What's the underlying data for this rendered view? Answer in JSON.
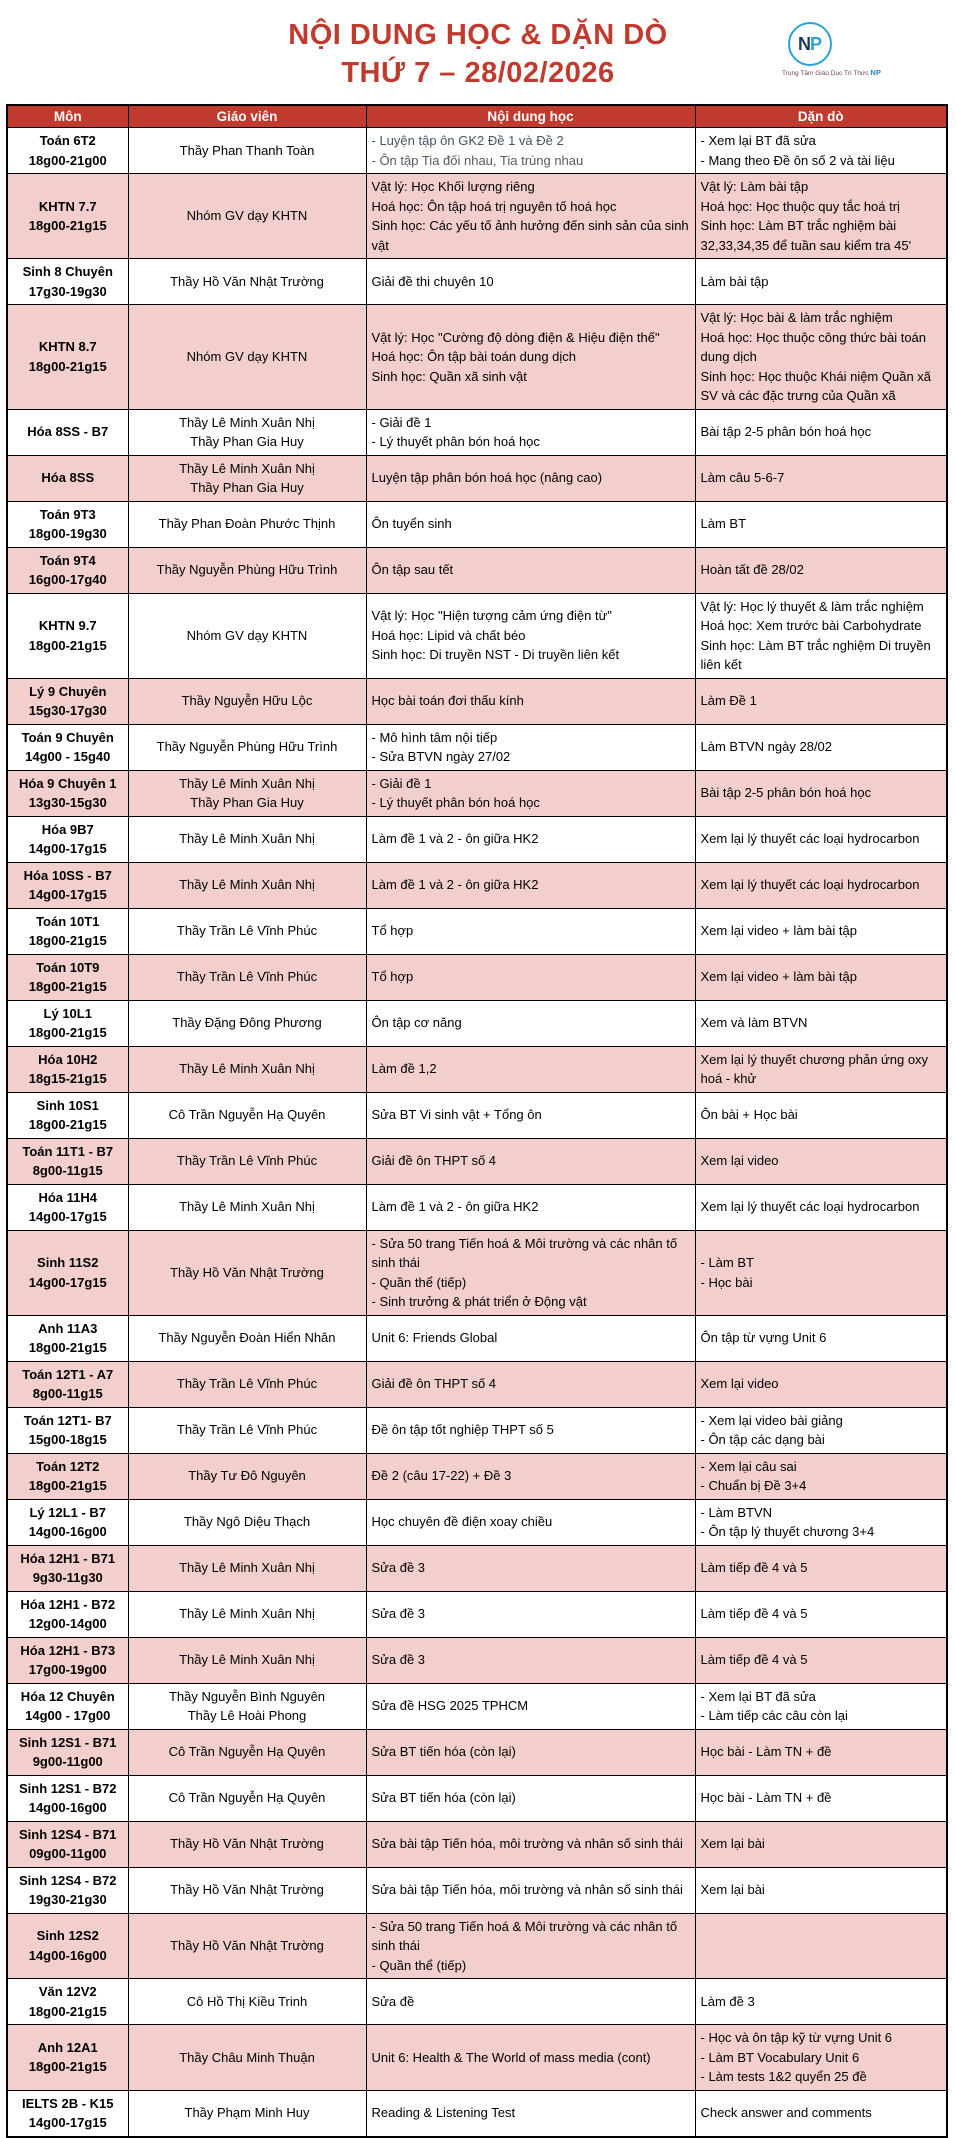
{
  "header": {
    "title_line1": "NỘI DUNG HỌC & DẶN DÒ",
    "title_line2": "THỨ 7 – 28/02/2026",
    "logo": {
      "monogram_n": "N",
      "monogram_p": "P",
      "caption": "Trung Tâm Giáo Dục Trí Thức",
      "caption_suffix": "NP"
    }
  },
  "theme": {
    "accent_red": "#c13a2e",
    "row_pink": "#f2cfcc",
    "header_text": "#ffffff",
    "logo_blue": "#29a3d4",
    "logo_navy": "#1b3a5e",
    "muted_text": "#595959"
  },
  "table": {
    "columns": [
      "Môn",
      "Giáo viên",
      "Nội dung học",
      "Dặn dò"
    ],
    "rows": [
      {
        "subject": "Toán 6T2",
        "time": "18g00-21g00",
        "teachers": [
          "Thầy Phan Thanh Toàn"
        ],
        "content": [
          "- Luyện tập ôn GK2 Đề 1 và Đề 2",
          "- Ôn tập Tia đối nhau, Tia trùng nhau"
        ],
        "content_colors": [
          "#44546a",
          "#595959"
        ],
        "homework": [
          "- Xem lại BT đã sửa",
          "- Mang theo Đề ôn số 2 và tài liệu"
        ]
      },
      {
        "subject": "KHTN 7.7",
        "time": "18g00-21g15",
        "teachers": [
          "Nhóm GV dạy KHTN"
        ],
        "content": [
          "Vật lý: Học Khối lượng riêng",
          "Hoá học: Ôn tập hoá trị nguyên tố hoá học",
          "Sinh học: Các yếu tố ảnh hưởng đến sinh sản của sinh vật"
        ],
        "homework": [
          "Vật lý: Làm bài tập",
          "Hoá học: Học thuộc quy tắc hoá trị",
          "Sinh học: Làm BT trắc nghiệm bài 32,33,34,35 để tuần sau kiểm tra 45'"
        ]
      },
      {
        "subject": "Sinh 8 Chuyên",
        "time": "17g30-19g30",
        "teachers": [
          "Thầy Hồ Văn Nhật Trường"
        ],
        "content": [
          "Giải đề thi chuyên 10"
        ],
        "homework": [
          "Làm bài tập"
        ]
      },
      {
        "subject": "KHTN 8.7",
        "time": "18g00-21g15",
        "teachers": [
          "Nhóm GV dạy KHTN"
        ],
        "content": [
          "Vật lý: Học \"Cường độ dòng điện & Hiệu điện thế\"",
          "Hoá học: Ôn tập bài toán dung dịch",
          "Sinh học: Quần xã sinh vật"
        ],
        "homework": [
          "Vật lý: Học bài & làm trắc nghiệm",
          "Hoá học: Học thuộc công thức bài toán dung dịch",
          "Sinh học: Học thuộc Khái niệm Quần xã SV và các đặc trưng của Quần xã"
        ]
      },
      {
        "subject": "Hóa 8SS - B7",
        "time": "",
        "teachers": [
          "Thầy Lê Minh Xuân Nhị",
          "Thầy Phan Gia Huy"
        ],
        "content": [
          "- Giải đề 1",
          "- Lý thuyết phân bón hoá học"
        ],
        "homework": [
          "Bài tập 2-5 phân bón hoá học"
        ]
      },
      {
        "subject": "Hóa 8SS",
        "time": "",
        "teachers": [
          "Thầy Lê Minh Xuân Nhị",
          "Thầy Phan Gia Huy"
        ],
        "content": [
          "Luyện tập phân bón hoá học (nâng cao)"
        ],
        "homework": [
          "Làm câu 5-6-7"
        ]
      },
      {
        "subject": "Toán 9T3",
        "time": "18g00-19g30",
        "teachers": [
          "Thầy Phan Đoàn Phước Thịnh"
        ],
        "content": [
          "Ôn tuyển sinh"
        ],
        "homework": [
          "Làm BT"
        ]
      },
      {
        "subject": "Toán 9T4",
        "time": "16g00-17g40",
        "teachers": [
          "Thầy Nguyễn Phùng Hữu Trình"
        ],
        "content": [
          "Ôn tập sau tết"
        ],
        "homework": [
          "Hoàn tất đề 28/02"
        ]
      },
      {
        "subject": "KHTN 9.7",
        "time": "18g00-21g15",
        "teachers": [
          "Nhóm GV dạy KHTN"
        ],
        "content": [
          "Vật lý: Học \"Hiện tượng cảm ứng điện từ\"",
          "Hoá học: Lipid và chất béo",
          "Sinh học: Di truyền NST - Di truyền liên kết"
        ],
        "homework": [
          "Vật lý: Học lý thuyết & làm trắc nghiệm",
          "Hoá học: Xem trước bài Carbohydrate",
          "Sinh học: Làm BT trắc nghiệm Di truyền liên kết"
        ]
      },
      {
        "subject": "Lý 9 Chuyên",
        "time": "15g30-17g30",
        "teachers": [
          "Thầy Nguyễn Hữu Lộc"
        ],
        "content": [
          "Học bài toán đơi thấu kính"
        ],
        "homework": [
          "Làm Đề 1"
        ]
      },
      {
        "subject": "Toán 9 Chuyên",
        "time": "14g00 - 15g40",
        "teachers": [
          "Thầy Nguyễn Phùng Hữu Trình"
        ],
        "content": [
          "- Mô hình tâm nội tiếp",
          "- Sửa BTVN ngày 27/02"
        ],
        "homework": [
          "Làm BTVN ngày 28/02"
        ]
      },
      {
        "subject": "Hóa 9 Chuyên 1",
        "time": "13g30-15g30",
        "teachers": [
          "Thầy Lê Minh Xuân Nhị",
          "Thầy Phan Gia Huy"
        ],
        "content": [
          "- Giải đề 1",
          "- Lý thuyết phân bón hoá học"
        ],
        "homework": [
          "Bài tập 2-5 phân bón hoá học"
        ]
      },
      {
        "subject": "Hóa 9B7",
        "time": "14g00-17g15",
        "teachers": [
          "Thầy Lê Minh Xuân Nhị"
        ],
        "content": [
          "Làm đề 1 và 2 - ôn giữa HK2"
        ],
        "homework": [
          "Xem lại lý thuyết các loại hydrocarbon"
        ]
      },
      {
        "subject": "Hóa 10SS - B7",
        "time": "14g00-17g15",
        "teachers": [
          "Thầy Lê Minh Xuân Nhị"
        ],
        "content": [
          "Làm đề 1 và 2 - ôn giữa HK2"
        ],
        "homework": [
          "Xem lại lý thuyết các loại hydrocarbon"
        ]
      },
      {
        "subject": "Toán 10T1",
        "time": "18g00-21g15",
        "teachers": [
          "Thầy Trần Lê Vĩnh Phúc"
        ],
        "content": [
          "Tổ hợp"
        ],
        "homework": [
          "Xem lại video + làm bài tập"
        ]
      },
      {
        "subject": "Toán 10T9",
        "time": "18g00-21g15",
        "teachers": [
          "Thầy Trần Lê Vĩnh Phúc"
        ],
        "content": [
          "Tổ hợp"
        ],
        "homework": [
          "Xem lại video + làm bài tập"
        ]
      },
      {
        "subject": "Lý 10L1",
        "time": "18g00-21g15",
        "teachers": [
          "Thầy Đặng Đông Phương"
        ],
        "content": [
          "Ôn tập cơ năng"
        ],
        "homework": [
          "Xem và làm BTVN"
        ]
      },
      {
        "subject": "Hóa 10H2",
        "time": "18g15-21g15",
        "teachers": [
          "Thầy Lê Minh Xuân Nhị"
        ],
        "content": [
          "Làm đề 1,2"
        ],
        "homework": [
          "Xem lại lý thuyết chương phản ứng oxy hoá - khử"
        ]
      },
      {
        "subject": "Sinh 10S1",
        "time": "18g00-21g15",
        "teachers": [
          "Cô Trần Nguyễn Hạ Quyên"
        ],
        "content": [
          "Sửa BT Vi sinh vật + Tổng ôn"
        ],
        "homework": [
          "Ôn bài + Học bài"
        ]
      },
      {
        "subject": "Toán 11T1 - B7",
        "time": "8g00-11g15",
        "teachers": [
          "Thầy Trần Lê Vĩnh Phúc"
        ],
        "content": [
          "Giải đề ôn THPT số 4"
        ],
        "homework": [
          "Xem lại video"
        ]
      },
      {
        "subject": "Hóa 11H4",
        "time": "14g00-17g15",
        "teachers": [
          "Thầy Lê Minh Xuân Nhị"
        ],
        "content": [
          "Làm đề 1 và 2 - ôn giữa HK2"
        ],
        "homework": [
          "Xem lại lý thuyết các loại hydrocarbon"
        ]
      },
      {
        "subject": "Sinh 11S2",
        "time": "14g00-17g15",
        "teachers": [
          "Thầy Hồ Văn Nhật Trường"
        ],
        "content": [
          "- Sửa 50 trang Tiến hoá & Môi trường và các nhân tố sinh thái",
          "- Quần thể (tiếp)",
          "- Sinh trưởng & phát triển ở Động vật"
        ],
        "homework": [
          "- Làm BT",
          "- Học bài"
        ]
      },
      {
        "subject": "Anh 11A3",
        "time": "18g00-21g15",
        "teachers": [
          "Thầy Nguyễn Đoàn Hiển Nhân"
        ],
        "content": [
          "Unit 6: Friends Global"
        ],
        "homework": [
          "Ôn tập từ vựng Unit 6"
        ]
      },
      {
        "subject": "Toán 12T1 - A7",
        "time": "8g00-11g15",
        "teachers": [
          "Thầy Trần Lê Vĩnh Phúc"
        ],
        "content": [
          "Giải đề ôn THPT số 4"
        ],
        "homework": [
          "Xem lại video"
        ]
      },
      {
        "subject": "Toán 12T1- B7",
        "time": "15g00-18g15",
        "teachers": [
          "Thầy Trần Lê Vĩnh Phúc"
        ],
        "content": [
          "Đề ôn tập tốt nghiệp THPT số 5"
        ],
        "homework": [
          "- Xem lại video bài giảng",
          "- Ôn tập các dạng bài"
        ]
      },
      {
        "subject": "Toán 12T2",
        "time": "18g00-21g15",
        "teachers": [
          "Thầy Tư Đô Nguyên"
        ],
        "content": [
          "Đề 2 (câu 17-22) + Đề 3"
        ],
        "homework": [
          "- Xem lại câu sai",
          "- Chuẩn bị Đề 3+4"
        ]
      },
      {
        "subject": "Lý 12L1 - B7",
        "time": "14g00-16g00",
        "teachers": [
          "Thầy Ngô Diệu Thạch"
        ],
        "content": [
          "Học chuyên đề điện xoay chiều"
        ],
        "homework": [
          "- Làm BTVN",
          "- Ôn tập lý thuyết chương 3+4"
        ]
      },
      {
        "subject": "Hóa 12H1 - B71",
        "time": "9g30-11g30",
        "teachers": [
          "Thầy Lê Minh Xuân Nhị"
        ],
        "content": [
          "Sửa đề 3"
        ],
        "homework": [
          "Làm tiếp đề 4 và 5"
        ]
      },
      {
        "subject": "Hóa 12H1 - B72",
        "time": "12g00-14g00",
        "teachers": [
          "Thầy Lê Minh Xuân Nhị"
        ],
        "content": [
          "Sửa đề 3"
        ],
        "homework": [
          "Làm tiếp đề 4 và 5"
        ]
      },
      {
        "subject": "Hóa 12H1 - B73",
        "time": "17g00-19g00",
        "teachers": [
          "Thầy Lê Minh Xuân Nhị"
        ],
        "content": [
          "Sửa đề 3"
        ],
        "homework": [
          "Làm tiếp đề 4 và 5"
        ]
      },
      {
        "subject": "Hóa 12 Chuyên",
        "time": "14g00 - 17g00",
        "teachers": [
          "Thầy Nguyễn Bình Nguyên",
          "Thầy Lê Hoài Phong"
        ],
        "content": [
          "Sửa đề HSG 2025 TPHCM"
        ],
        "homework": [
          "- Xem lại BT đã sửa",
          "- Làm tiếp các câu còn lại"
        ]
      },
      {
        "subject": "Sinh 12S1 - B71",
        "time": "9g00-11g00",
        "teachers": [
          "Cô Trần Nguyễn Hạ Quyên"
        ],
        "content": [
          "Sửa BT tiến hóa (còn lại)"
        ],
        "homework": [
          "Học bài - Làm TN + đề"
        ]
      },
      {
        "subject": "Sinh 12S1 - B72",
        "time": "14g00-16g00",
        "teachers": [
          "Cô Trần Nguyễn Hạ Quyên"
        ],
        "content": [
          "Sửa BT tiến hóa (còn lại)"
        ],
        "homework": [
          "Học bài - Làm TN + đề"
        ]
      },
      {
        "subject": "Sinh 12S4 - B71",
        "time": "09g00-11g00",
        "teachers": [
          "Thầy Hồ Văn Nhật Trường"
        ],
        "content": [
          "Sửa bài tập Tiến hóa, môi trường và nhân số sinh thái"
        ],
        "homework": [
          "Xem lại bài"
        ]
      },
      {
        "subject": "Sinh 12S4 - B72",
        "time": "19g30-21g30",
        "teachers": [
          "Thầy Hồ Văn Nhật Trường"
        ],
        "content": [
          "Sửa bài tập Tiến hóa, môi trường và nhân số sinh thái"
        ],
        "homework": [
          "Xem lại bài"
        ]
      },
      {
        "subject": "Sinh 12S2",
        "time": "14g00-16g00",
        "teachers": [
          "Thầy Hồ Văn Nhật Trường"
        ],
        "content": [
          "- Sửa 50 trang Tiến hoá & Môi trường và các nhân tố sinh thái",
          "- Quần thể (tiếp)"
        ],
        "homework": []
      },
      {
        "subject": "Văn 12V2",
        "time": "18g00-21g15",
        "teachers": [
          "Cô Hồ Thị Kiều Trinh"
        ],
        "content": [
          "Sửa đề"
        ],
        "homework": [
          "Làm đề 3"
        ]
      },
      {
        "subject": "Anh 12A1",
        "time": "18g00-21g15",
        "teachers": [
          "Thầy Châu Minh Thuận"
        ],
        "content": [
          "Unit 6: Health & The World of mass media (cont)"
        ],
        "homework": [
          "- Học và ôn tập kỹ từ vựng Unit 6",
          "- Làm BT Vocabulary Unit 6",
          "- Làm tests 1&2 quyển 25 đề"
        ]
      },
      {
        "subject": "IELTS 2B - K15",
        "time": "14g00-17g15",
        "teachers": [
          "Thầy Phạm Minh Huy"
        ],
        "content": [
          "Reading & Listening Test"
        ],
        "homework": [
          "Check answer and comments"
        ]
      }
    ]
  }
}
